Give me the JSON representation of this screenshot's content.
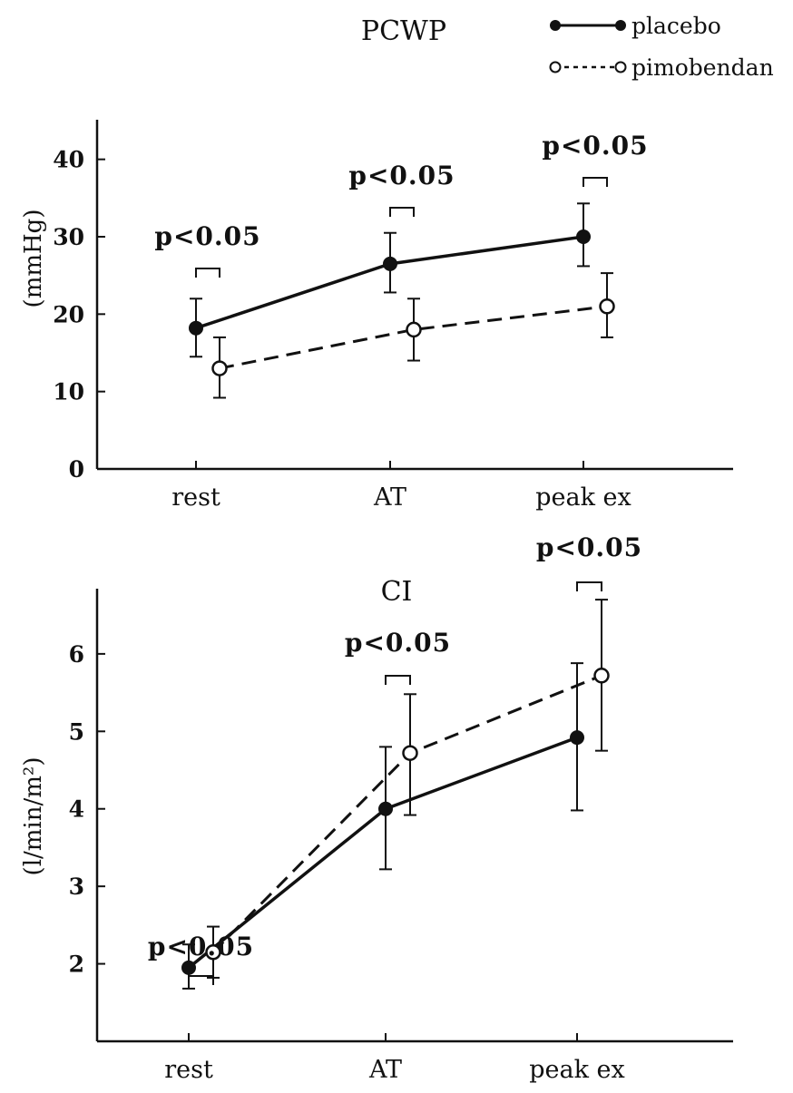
{
  "legend": {
    "entries": [
      {
        "label": "placebo",
        "style": "solid",
        "marker": "filled-circle"
      },
      {
        "label": "pimobendan",
        "style": "dashed",
        "marker": "open-circle"
      }
    ]
  },
  "chart_data": [
    {
      "id": "pcwp",
      "type": "line",
      "title": "PCWP",
      "xlabel": "",
      "ylabel": "(mmHg)",
      "categories": [
        "rest",
        "AT",
        "peak ex"
      ],
      "ylim": [
        0,
        45
      ],
      "yticks": [
        "0",
        "10",
        "20",
        "30",
        "40"
      ],
      "series": [
        {
          "name": "placebo",
          "style": "solid",
          "marker": "filled",
          "values": [
            18.2,
            26.5,
            30.0
          ],
          "err_low": [
            14.5,
            22.8,
            26.2
          ],
          "err_high": [
            22.0,
            30.5,
            34.3
          ]
        },
        {
          "name": "pimobendan",
          "style": "dashed",
          "marker": "open",
          "values": [
            13.0,
            18.0,
            21.0
          ],
          "err_low": [
            9.2,
            14.0,
            17.0
          ],
          "err_high": [
            17.0,
            22.0,
            25.3
          ]
        }
      ],
      "annotations": [
        "p<0.05",
        "p<0.05",
        "p<0.05"
      ]
    },
    {
      "id": "ci",
      "type": "line",
      "title": "CI",
      "xlabel": "",
      "ylabel": "(l/min/m²)",
      "categories": [
        "rest",
        "AT",
        "peak ex"
      ],
      "ylim": [
        1.0,
        6.9
      ],
      "yticks": [
        "2",
        "3",
        "4",
        "5",
        "6"
      ],
      "series": [
        {
          "name": "placebo",
          "style": "solid",
          "marker": "filled",
          "values": [
            1.95,
            4.0,
            4.92
          ],
          "err_low": [
            1.68,
            3.22,
            3.98
          ],
          "err_high": [
            2.25,
            4.8,
            5.88
          ]
        },
        {
          "name": "pimobendan",
          "style": "dashed",
          "marker": "open",
          "values": [
            2.15,
            4.72,
            5.72
          ],
          "err_low": [
            1.82,
            3.92,
            4.75
          ],
          "err_high": [
            2.48,
            5.48,
            6.7
          ]
        }
      ],
      "annotations": [
        "p<0.05",
        "p<0.05",
        "p<0.05"
      ]
    }
  ]
}
